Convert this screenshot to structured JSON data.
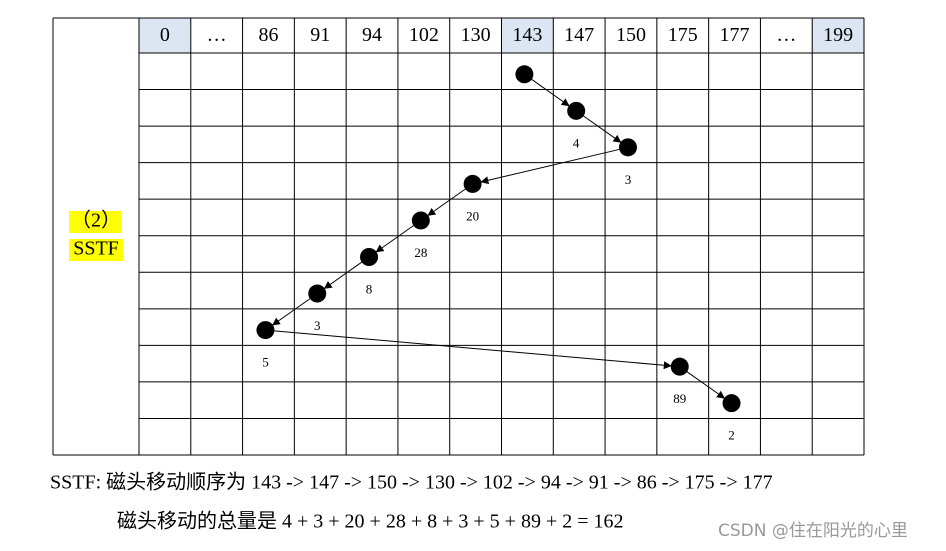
{
  "table": {
    "columns": [
      "0",
      "…",
      "86",
      "91",
      "94",
      "102",
      "130",
      "143",
      "147",
      "150",
      "175",
      "177",
      "…",
      "199"
    ],
    "label": [
      "（2）",
      "SSTF"
    ]
  },
  "distances": [
    "4",
    "3",
    "20",
    "28",
    "8",
    "3",
    "5",
    "89",
    "2"
  ],
  "summary": [
    "SSTF:  磁头移动顺序为 143 -> 147 -> 150 -> 130 -> 102 -> 94  -> 91 -> 86 -> 175 -> 177",
    "磁头移动的总量是  4 + 3 + 20 + 28 + 8 + 3 + 5 + 89 + 2 = 162"
  ],
  "watermark": "CSDN @住在阳光的心里"
}
